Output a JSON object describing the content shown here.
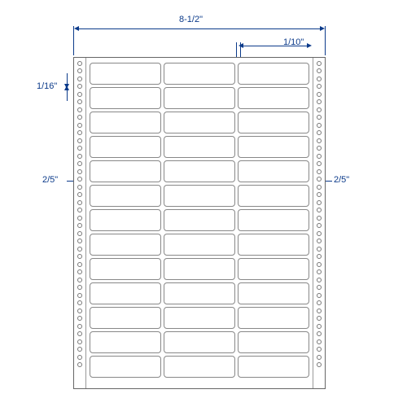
{
  "dimensions": {
    "total_width": "8-1/2\"",
    "label_width": "2-1/2\"",
    "label_height": "15/16\"",
    "h_gap": "1/10\"",
    "v_gap": "1/16\"",
    "margin_left": "2/5\"",
    "margin_right": "2/5\""
  },
  "layout": {
    "rows": 13,
    "cols": 3,
    "holes_per_strip": 40
  },
  "colors": {
    "dim_color": "#0b3a8a",
    "border_color": "#888",
    "sheet_border": "#666"
  }
}
